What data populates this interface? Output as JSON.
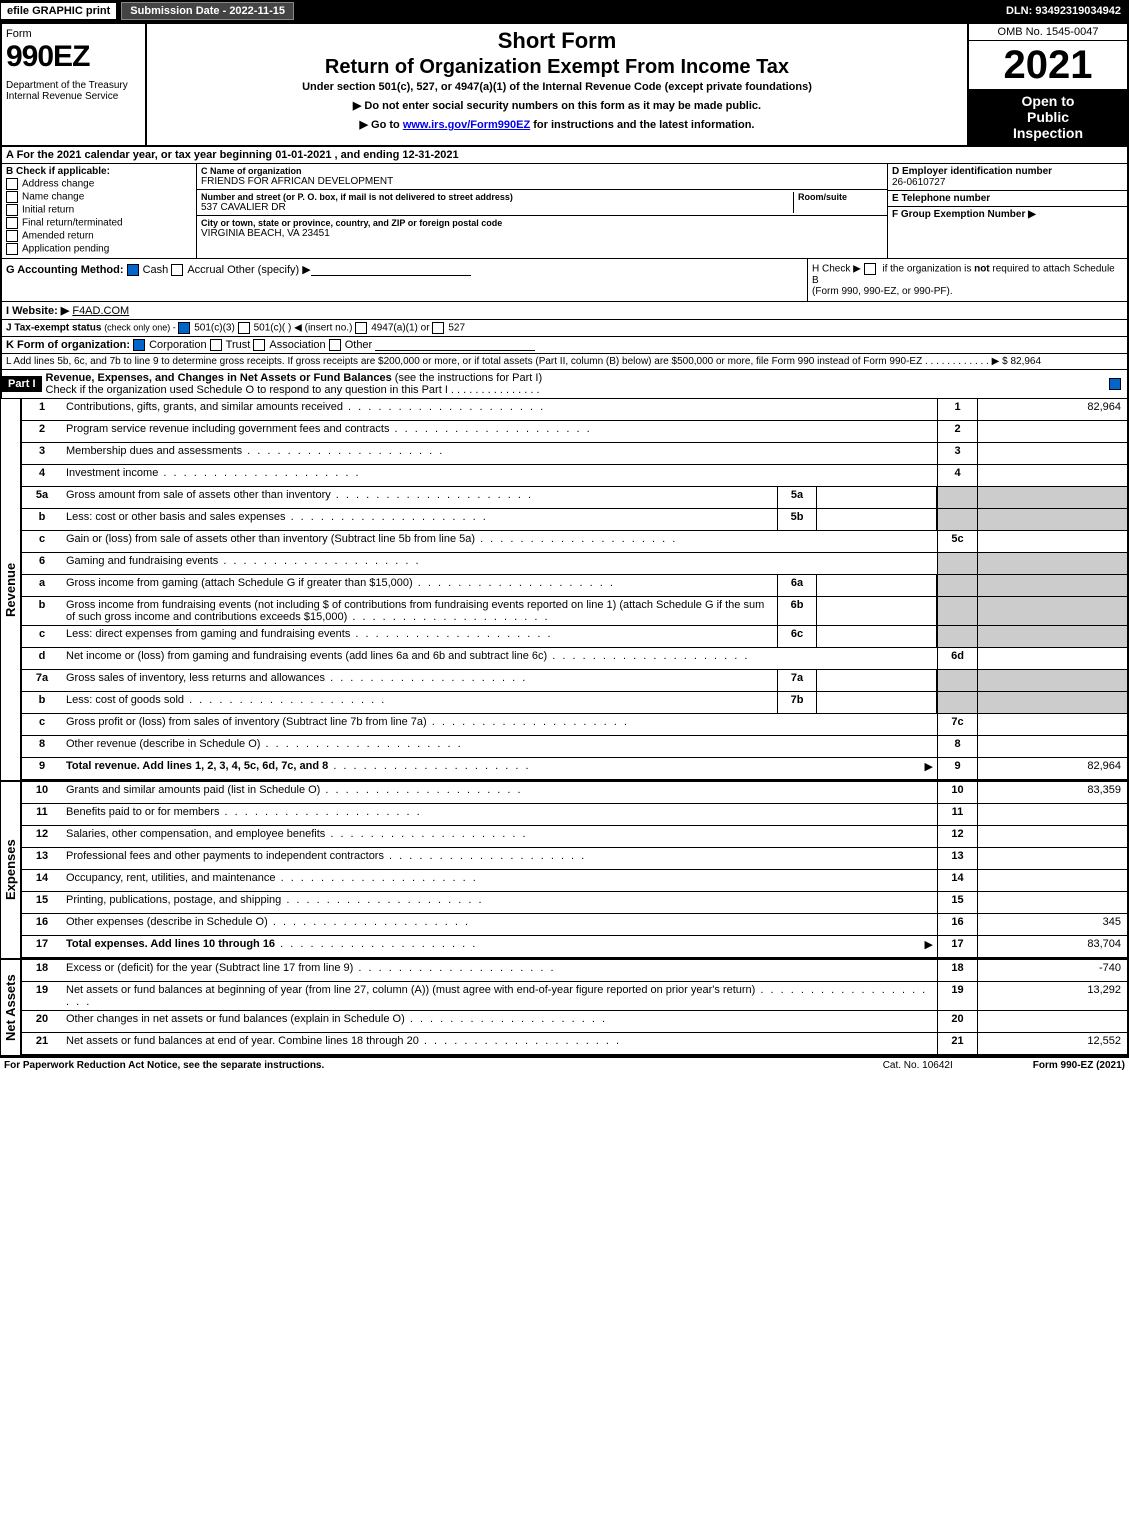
{
  "topbar": {
    "print": "efile GRAPHIC print",
    "subdate": "Submission Date - 2022-11-15",
    "dln": "DLN: 93492319034942"
  },
  "header": {
    "form_word": "Form",
    "form_num": "990EZ",
    "dept": "Department of the Treasury\nInternal Revenue Service",
    "title1": "Short Form",
    "title2": "Return of Organization Exempt From Income Tax",
    "sub": "Under section 501(c), 527, or 4947(a)(1) of the Internal Revenue Code (except private foundations)",
    "bullet1": "▶ Do not enter social security numbers on this form as it may be made public.",
    "bullet2_pre": "▶ Go to ",
    "bullet2_link": "www.irs.gov/Form990EZ",
    "bullet2_post": " for instructions and the latest information.",
    "omb": "OMB No. 1545-0047",
    "year": "2021",
    "inspect1": "Open to",
    "inspect2": "Public",
    "inspect3": "Inspection"
  },
  "A": "A  For the 2021 calendar year, or tax year beginning 01-01-2021 , and ending 12-31-2021",
  "B": {
    "head": "B  Check if applicable:",
    "opts": [
      "Address change",
      "Name change",
      "Initial return",
      "Final return/terminated",
      "Amended return",
      "Application pending"
    ]
  },
  "C": {
    "name_lbl": "C Name of organization",
    "name": "FRIENDS FOR AFRICAN DEVELOPMENT",
    "street_lbl": "Number and street (or P. O. box, if mail is not delivered to street address)",
    "room_lbl": "Room/suite",
    "street": "537 CAVALIER DR",
    "city_lbl": "City or town, state or province, country, and ZIP or foreign postal code",
    "city": "VIRGINIA BEACH, VA  23451"
  },
  "D": {
    "lbl": "D Employer identification number",
    "val": "26-0610727"
  },
  "E": {
    "lbl": "E Telephone number",
    "val": ""
  },
  "F": {
    "lbl": "F Group Exemption Number  ▶",
    "val": ""
  },
  "G": {
    "lbl": "G Accounting Method:",
    "cash": "Cash",
    "accrual": "Accrual",
    "other": "Other (specify) ▶"
  },
  "H": {
    "txt1": "H  Check ▶ ",
    "txt2": " if the organization is ",
    "not": "not",
    "txt3": " required to attach Schedule B",
    "txt4": "(Form 990, 990-EZ, or 990-PF)."
  },
  "I": {
    "lbl": "I Website: ▶",
    "val": "F4AD.COM"
  },
  "J": {
    "pre": "J Tax-exempt status ",
    "small": "(check only one) - ",
    "o1": "501(c)(3)",
    "o2": "501(c)(  ) ◀ (insert no.)",
    "o3": "4947(a)(1) or",
    "o4": "527"
  },
  "K": {
    "lbl": "K Form of organization:",
    "opts": [
      "Corporation",
      "Trust",
      "Association",
      "Other"
    ]
  },
  "L": {
    "txt": "L Add lines 5b, 6c, and 7b to line 9 to determine gross receipts. If gross receipts are $200,000 or more, or if total assets (Part II, column (B) below) are $500,000 or more, file Form 990 instead of Form 990-EZ",
    "arrow": "▶ $",
    "val": "82,964"
  },
  "partI": {
    "hdr": "Part I",
    "title": "Revenue, Expenses, and Changes in Net Assets or Fund Balances ",
    "titlesub": "(see the instructions for Part I)",
    "check": "Check if the organization used Schedule O to respond to any question in this Part I"
  },
  "revenue_label": "Revenue",
  "expenses_label": "Expenses",
  "netassets_label": "Net Assets",
  "lines": {
    "1": {
      "n": "1",
      "d": "Contributions, gifts, grants, and similar amounts received",
      "cn": "1",
      "v": "82,964"
    },
    "2": {
      "n": "2",
      "d": "Program service revenue including government fees and contracts",
      "cn": "2",
      "v": ""
    },
    "3": {
      "n": "3",
      "d": "Membership dues and assessments",
      "cn": "3",
      "v": ""
    },
    "4": {
      "n": "4",
      "d": "Investment income",
      "cn": "4",
      "v": ""
    },
    "5a": {
      "n": "5a",
      "d": "Gross amount from sale of assets other than inventory",
      "sl": "5a",
      "sv": ""
    },
    "5b": {
      "n": "b",
      "d": "Less: cost or other basis and sales expenses",
      "sl": "5b",
      "sv": ""
    },
    "5c": {
      "n": "c",
      "d": "Gain or (loss) from sale of assets other than inventory (Subtract line 5b from line 5a)",
      "cn": "5c",
      "v": ""
    },
    "6": {
      "n": "6",
      "d": "Gaming and fundraising events"
    },
    "6a": {
      "n": "a",
      "d": "Gross income from gaming (attach Schedule G if greater than $15,000)",
      "sl": "6a",
      "sv": ""
    },
    "6b": {
      "n": "b",
      "d": "Gross income from fundraising events (not including $               of contributions from fundraising events reported on line 1) (attach Schedule G if the sum of such gross income and contributions exceeds $15,000)",
      "sl": "6b",
      "sv": ""
    },
    "6c": {
      "n": "c",
      "d": "Less: direct expenses from gaming and fundraising events",
      "sl": "6c",
      "sv": ""
    },
    "6d": {
      "n": "d",
      "d": "Net income or (loss) from gaming and fundraising events (add lines 6a and 6b and subtract line 6c)",
      "cn": "6d",
      "v": ""
    },
    "7a": {
      "n": "7a",
      "d": "Gross sales of inventory, less returns and allowances",
      "sl": "7a",
      "sv": ""
    },
    "7b": {
      "n": "b",
      "d": "Less: cost of goods sold",
      "sl": "7b",
      "sv": ""
    },
    "7c": {
      "n": "c",
      "d": "Gross profit or (loss) from sales of inventory (Subtract line 7b from line 7a)",
      "cn": "7c",
      "v": ""
    },
    "8": {
      "n": "8",
      "d": "Other revenue (describe in Schedule O)",
      "cn": "8",
      "v": ""
    },
    "9": {
      "n": "9",
      "d": "Total revenue. Add lines 1, 2, 3, 4, 5c, 6d, 7c, and 8",
      "bold": true,
      "arrow": "▶",
      "cn": "9",
      "v": "82,964"
    },
    "10": {
      "n": "10",
      "d": "Grants and similar amounts paid (list in Schedule O)",
      "cn": "10",
      "v": "83,359"
    },
    "11": {
      "n": "11",
      "d": "Benefits paid to or for members",
      "cn": "11",
      "v": ""
    },
    "12": {
      "n": "12",
      "d": "Salaries, other compensation, and employee benefits",
      "cn": "12",
      "v": ""
    },
    "13": {
      "n": "13",
      "d": "Professional fees and other payments to independent contractors",
      "cn": "13",
      "v": ""
    },
    "14": {
      "n": "14",
      "d": "Occupancy, rent, utilities, and maintenance",
      "cn": "14",
      "v": ""
    },
    "15": {
      "n": "15",
      "d": "Printing, publications, postage, and shipping",
      "cn": "15",
      "v": ""
    },
    "16": {
      "n": "16",
      "d": "Other expenses (describe in Schedule O)",
      "cn": "16",
      "v": "345"
    },
    "17": {
      "n": "17",
      "d": "Total expenses. Add lines 10 through 16",
      "bold": true,
      "arrow": "▶",
      "cn": "17",
      "v": "83,704"
    },
    "18": {
      "n": "18",
      "d": "Excess or (deficit) for the year (Subtract line 17 from line 9)",
      "cn": "18",
      "v": "-740"
    },
    "19": {
      "n": "19",
      "d": "Net assets or fund balances at beginning of year (from line 27, column (A)) (must agree with end-of-year figure reported on prior year's return)",
      "cn": "19",
      "v": "13,292"
    },
    "20": {
      "n": "20",
      "d": "Other changes in net assets or fund balances (explain in Schedule O)",
      "cn": "20",
      "v": ""
    },
    "21": {
      "n": "21",
      "d": "Net assets or fund balances at end of year. Combine lines 18 through 20",
      "cn": "21",
      "v": "12,552"
    }
  },
  "footer": {
    "f1": "For Paperwork Reduction Act Notice, see the separate instructions.",
    "f2": "Cat. No. 10642I",
    "f3": "Form 990-EZ (2021)"
  }
}
